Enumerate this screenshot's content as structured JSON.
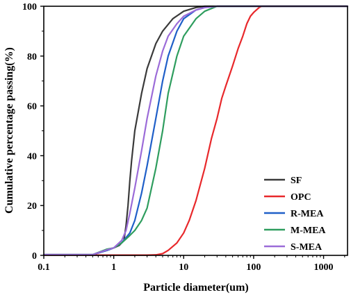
{
  "chart_data": {
    "type": "line",
    "xlabel": "Particle diameter(um)",
    "ylabel": "Cumulative percentage passing(%)",
    "xscale": "log",
    "xlim": [
      0.1,
      2200
    ],
    "ylim": [
      0,
      100
    ],
    "xticks": [
      0.1,
      1,
      10,
      100,
      1000
    ],
    "xtick_labels": [
      "0.1",
      "1",
      "10",
      "100",
      "1000"
    ],
    "yticks": [
      0,
      20,
      40,
      60,
      80,
      100
    ],
    "ytick_labels": [
      "0",
      "20",
      "40",
      "60",
      "80",
      "100"
    ],
    "grid": false,
    "legend_position": "bottom-right",
    "series": [
      {
        "name": "SF",
        "color": "#3a3a3a",
        "points": [
          [
            0.1,
            0.3
          ],
          [
            0.5,
            0.3
          ],
          [
            0.8,
            2
          ],
          [
            1.0,
            3
          ],
          [
            1.2,
            4
          ],
          [
            1.4,
            6
          ],
          [
            1.5,
            12
          ],
          [
            1.6,
            20
          ],
          [
            1.7,
            30
          ],
          [
            1.8,
            38
          ],
          [
            2.0,
            50
          ],
          [
            2.5,
            65
          ],
          [
            3.0,
            75
          ],
          [
            4.0,
            85
          ],
          [
            5.0,
            90
          ],
          [
            7.0,
            95
          ],
          [
            10,
            98
          ],
          [
            15,
            99.5
          ],
          [
            20,
            100
          ],
          [
            2200,
            100
          ]
        ]
      },
      {
        "name": "OPC",
        "color": "#e8282b",
        "points": [
          [
            0.1,
            0.1
          ],
          [
            3.0,
            0.1
          ],
          [
            4.0,
            0.2
          ],
          [
            5.0,
            0.7
          ],
          [
            6.0,
            2
          ],
          [
            8.0,
            5
          ],
          [
            10,
            9
          ],
          [
            12,
            14
          ],
          [
            15,
            22
          ],
          [
            20,
            35
          ],
          [
            25,
            47
          ],
          [
            30,
            55
          ],
          [
            35,
            63
          ],
          [
            40,
            68
          ],
          [
            50,
            76
          ],
          [
            60,
            83
          ],
          [
            70,
            88
          ],
          [
            80,
            93
          ],
          [
            90,
            96
          ],
          [
            100,
            97.5
          ],
          [
            120,
            99.5
          ],
          [
            130,
            100
          ],
          [
            2200,
            100
          ]
        ]
      },
      {
        "name": "R-MEA",
        "color": "#1f5fc8",
        "points": [
          [
            0.1,
            0.3
          ],
          [
            0.5,
            0.3
          ],
          [
            0.8,
            2
          ],
          [
            1.0,
            3
          ],
          [
            1.3,
            5
          ],
          [
            1.7,
            9
          ],
          [
            2.0,
            14
          ],
          [
            2.5,
            25
          ],
          [
            3.0,
            36
          ],
          [
            4.0,
            55
          ],
          [
            5.0,
            70
          ],
          [
            6.0,
            80
          ],
          [
            8.0,
            90
          ],
          [
            10,
            95
          ],
          [
            15,
            98.5
          ],
          [
            20,
            99.5
          ],
          [
            30,
            100
          ],
          [
            2200,
            100
          ]
        ]
      },
      {
        "name": "M-MEA",
        "color": "#2e9d5e",
        "points": [
          [
            0.1,
            0.3
          ],
          [
            0.5,
            0.3
          ],
          [
            0.8,
            2.5
          ],
          [
            1.0,
            3
          ],
          [
            1.3,
            5
          ],
          [
            1.7,
            8
          ],
          [
            2.0,
            10
          ],
          [
            2.5,
            14
          ],
          [
            3.0,
            19
          ],
          [
            4.0,
            35
          ],
          [
            5.0,
            50
          ],
          [
            6.0,
            65
          ],
          [
            8.0,
            80
          ],
          [
            10,
            88
          ],
          [
            15,
            95
          ],
          [
            20,
            98
          ],
          [
            30,
            100
          ],
          [
            2200,
            100
          ]
        ]
      },
      {
        "name": "S-MEA",
        "color": "#9b6bd8",
        "points": [
          [
            0.1,
            0.3
          ],
          [
            0.5,
            0.3
          ],
          [
            0.8,
            2.2
          ],
          [
            1.0,
            3
          ],
          [
            1.3,
            6
          ],
          [
            1.5,
            10
          ],
          [
            1.7,
            17
          ],
          [
            2.0,
            27
          ],
          [
            2.5,
            42
          ],
          [
            3.0,
            55
          ],
          [
            4.0,
            72
          ],
          [
            5.0,
            82
          ],
          [
            6.0,
            88
          ],
          [
            8.0,
            93
          ],
          [
            10,
            96
          ],
          [
            15,
            98.5
          ],
          [
            20,
            99.5
          ],
          [
            30,
            100
          ],
          [
            2200,
            100
          ]
        ]
      }
    ]
  }
}
